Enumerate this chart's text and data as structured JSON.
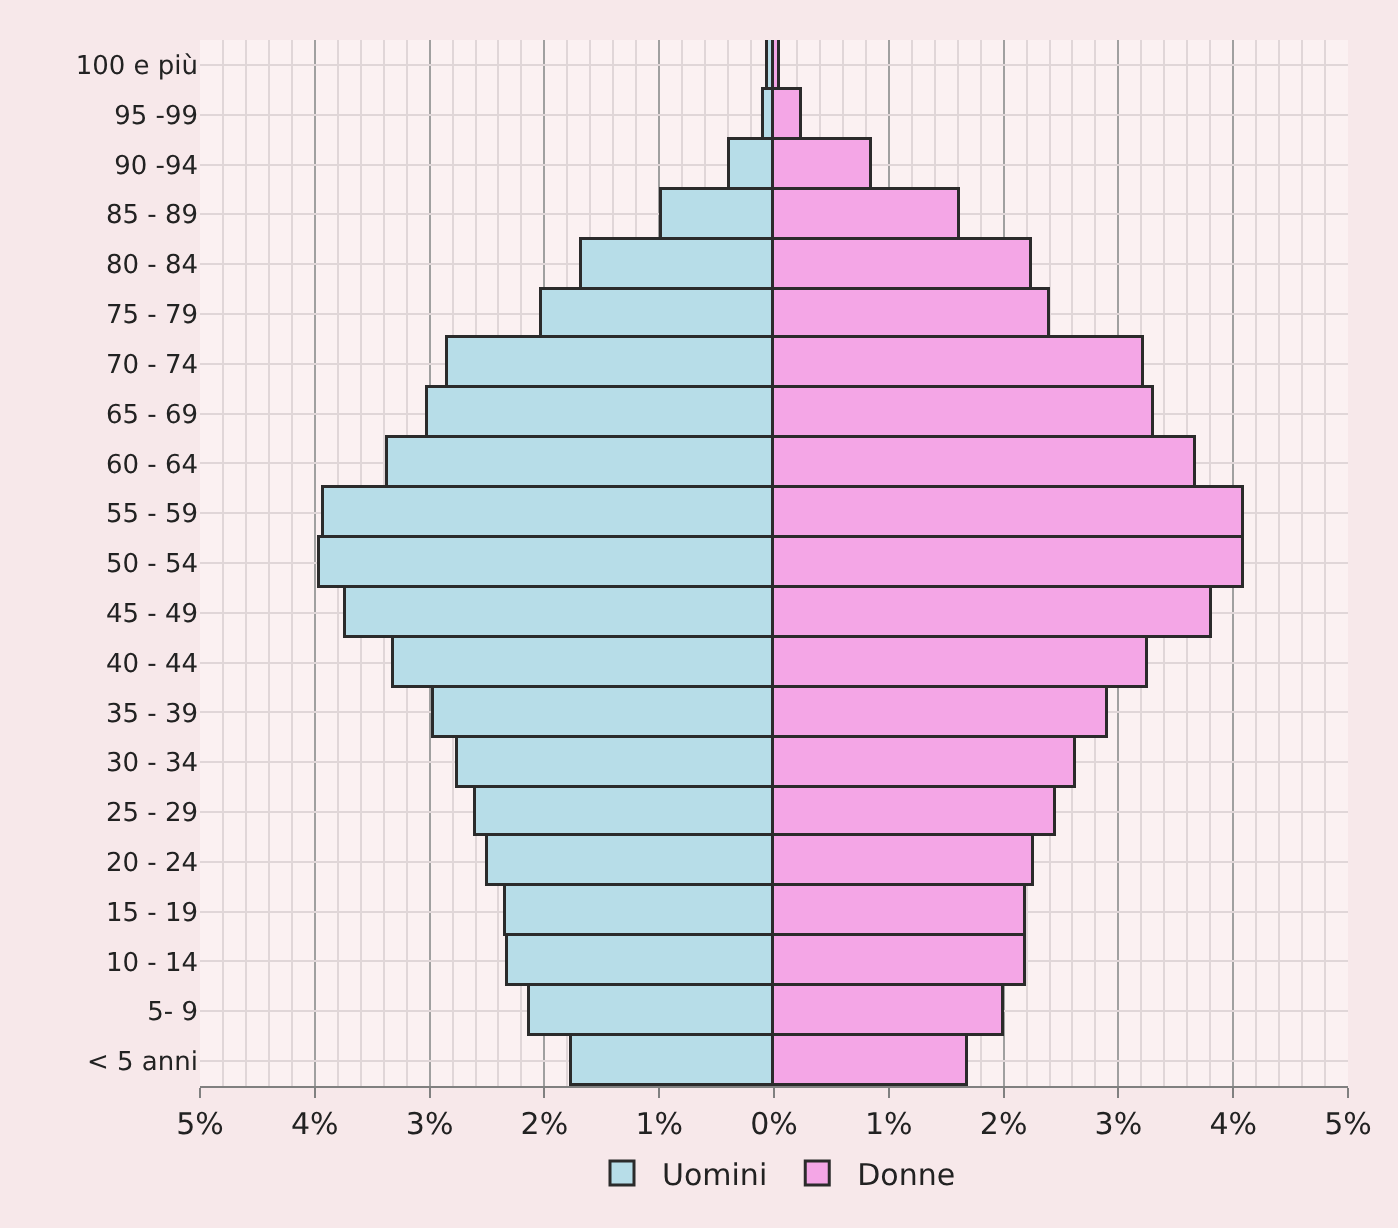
{
  "chart_data": {
    "type": "bar",
    "orientation": "horizontal",
    "categories": [
      "100 e più",
      "95 -99",
      "90 -94",
      "85 - 89",
      "80 - 84",
      "75 - 79",
      "70 - 74",
      "65 - 69",
      "60 - 64",
      "55 - 59",
      "50 - 54",
      "45 - 49",
      "40 - 44",
      "35 - 39",
      "30 - 34",
      "25 - 29",
      "20 - 24",
      "15 - 19",
      "10 - 14",
      "5- 9",
      "< 5 anni"
    ],
    "series": [
      {
        "name": "Uomini",
        "color": "#b7dde8",
        "values": [
          -0.05,
          -0.08,
          -0.39,
          -0.97,
          -1.67,
          -2.02,
          -2.84,
          -3.01,
          -3.36,
          -3.92,
          -3.95,
          -3.73,
          -3.31,
          -2.96,
          -2.76,
          -2.59,
          -2.5,
          -2.33,
          -2.31,
          -2.12,
          -1.76
        ]
      },
      {
        "name": "Donne",
        "color": "#f4a6e6",
        "values": [
          0.05,
          0.24,
          0.86,
          1.62,
          2.24,
          2.4,
          3.22,
          3.31,
          3.67,
          4.1,
          4.1,
          3.81,
          3.25,
          2.91,
          2.63,
          2.46,
          2.27,
          2.19,
          2.19,
          2.01,
          1.69
        ]
      }
    ],
    "xlim": [
      -5,
      5
    ],
    "xticks": [
      {
        "value": -5,
        "label": "5%"
      },
      {
        "value": -4,
        "label": "4%"
      },
      {
        "value": -3,
        "label": "3%"
      },
      {
        "value": -2,
        "label": "2%"
      },
      {
        "value": -1,
        "label": "1%"
      },
      {
        "value": 0,
        "label": "0%"
      },
      {
        "value": 1,
        "label": "1%"
      },
      {
        "value": 2,
        "label": "2%"
      },
      {
        "value": 3,
        "label": "3%"
      },
      {
        "value": 4,
        "label": "4%"
      },
      {
        "value": 5,
        "label": "5%"
      }
    ],
    "stacked": true,
    "grid": true,
    "legend": "bottom"
  }
}
